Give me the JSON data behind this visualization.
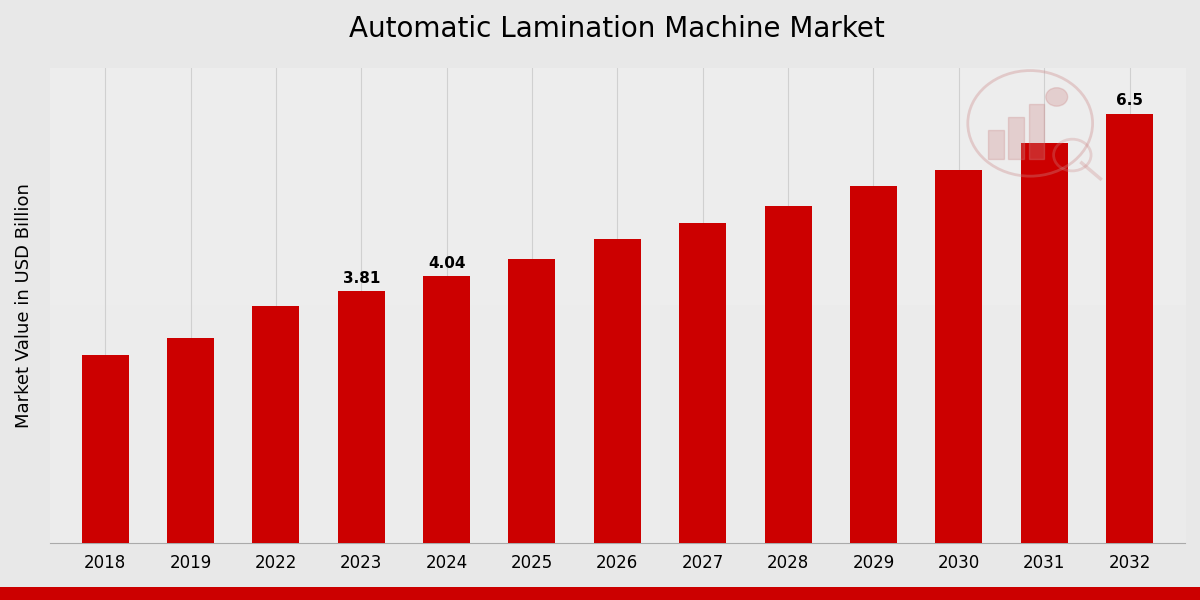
{
  "title": "Automatic Lamination Machine Market",
  "ylabel": "Market Value in USD Billion",
  "categories": [
    "2018",
    "2019",
    "2022",
    "2023",
    "2024",
    "2025",
    "2026",
    "2027",
    "2028",
    "2029",
    "2030",
    "2031",
    "2032"
  ],
  "values": [
    2.85,
    3.1,
    3.58,
    3.81,
    4.04,
    4.3,
    4.6,
    4.85,
    5.1,
    5.4,
    5.65,
    6.05,
    6.5
  ],
  "bar_color": "#cc0000",
  "annotated_bars": {
    "2023": "3.81",
    "2024": "4.04",
    "2032": "6.5"
  },
  "ylim": [
    0,
    7.2
  ],
  "bg_color_light": "#f0f0f0",
  "bg_color_dark": "#d8d8d8",
  "title_fontsize": 20,
  "ylabel_fontsize": 13,
  "tick_fontsize": 12,
  "annotation_fontsize": 11,
  "footer_color": "#cc0000",
  "grid_color": "#d0d0d0",
  "bar_width": 0.55
}
